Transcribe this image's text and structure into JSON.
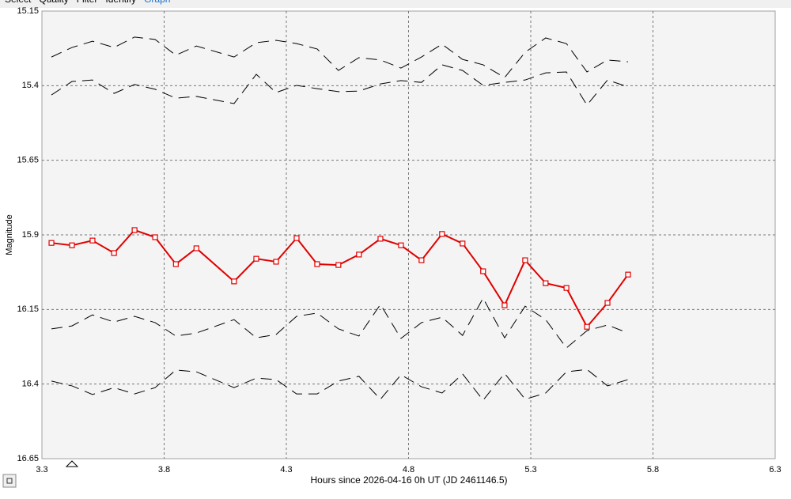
{
  "tabs": [
    "Select",
    "Quality",
    "Filter",
    "Identify",
    "Graph"
  ],
  "chart_data": {
    "type": "line",
    "y_label": "Magnitude",
    "x_label": "Hours since 2026-04-16 0h UT (JD 2461146.5)",
    "xlim": [
      3.3,
      6.3
    ],
    "xticks": [
      3.3,
      3.8,
      4.3,
      4.8,
      5.3,
      5.8,
      6.3
    ],
    "ylim": [
      16.65,
      15.15
    ],
    "yticks": [
      15.15,
      15.4,
      15.65,
      15.9,
      16.15,
      16.4,
      16.65
    ],
    "grid": true,
    "x": [
      3.339,
      3.423,
      3.507,
      3.595,
      3.679,
      3.763,
      3.848,
      3.932,
      4.086,
      4.177,
      4.258,
      4.342,
      4.426,
      4.513,
      4.597,
      4.685,
      4.769,
      4.853,
      4.937,
      5.021,
      5.105,
      5.193,
      5.277,
      5.361,
      5.446,
      5.53,
      5.614,
      5.698
    ],
    "series": [
      {
        "color": "#000000",
        "dash": true,
        "values": [
          15.304,
          15.272,
          15.251,
          15.272,
          15.237,
          15.245,
          15.298,
          15.267,
          15.304,
          15.256,
          15.248,
          15.259,
          15.277,
          15.349,
          15.306,
          15.314,
          15.341,
          15.304,
          15.261,
          15.312,
          15.33,
          15.373,
          15.288,
          15.24,
          15.259,
          15.354,
          15.314,
          15.32
        ]
      },
      {
        "color": "#000000",
        "dash": true,
        "values": [
          15.431,
          15.386,
          15.381,
          15.426,
          15.396,
          15.412,
          15.442,
          15.436,
          15.46,
          15.362,
          15.423,
          15.399,
          15.41,
          15.42,
          15.418,
          15.394,
          15.383,
          15.389,
          15.33,
          15.349,
          15.399,
          15.389,
          15.381,
          15.357,
          15.354,
          15.465,
          15.381,
          15.404
        ]
      },
      {
        "color": "#000000",
        "dash": true,
        "values": [
          16.215,
          16.205,
          16.168,
          16.192,
          16.173,
          16.194,
          16.239,
          16.229,
          16.184,
          16.245,
          16.234,
          16.173,
          16.162,
          16.215,
          16.239,
          16.133,
          16.247,
          16.194,
          16.176,
          16.237,
          16.112,
          16.245,
          16.139,
          16.184,
          16.279,
          16.221,
          16.202,
          16.229
        ]
      },
      {
        "color": "#000000",
        "dash": true,
        "values": [
          16.39,
          16.406,
          16.435,
          16.412,
          16.433,
          16.412,
          16.353,
          16.359,
          16.412,
          16.38,
          16.385,
          16.433,
          16.433,
          16.39,
          16.374,
          16.451,
          16.369,
          16.409,
          16.43,
          16.366,
          16.454,
          16.364,
          16.451,
          16.43,
          16.359,
          16.351,
          16.406,
          16.385
        ]
      },
      {
        "color": "#e00000",
        "marker": "square",
        "values": [
          15.927,
          15.935,
          15.919,
          15.961,
          15.884,
          15.908,
          15.998,
          15.945,
          16.056,
          15.98,
          15.99,
          15.911,
          15.998,
          16.001,
          15.966,
          15.913,
          15.935,
          15.985,
          15.897,
          15.929,
          16.022,
          16.136,
          15.985,
          16.062,
          16.078,
          16.208,
          16.128,
          16.033
        ]
      }
    ]
  }
}
